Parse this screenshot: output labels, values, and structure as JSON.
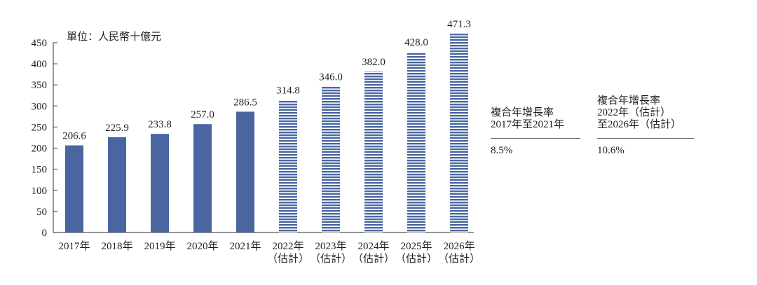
{
  "chart_data": {
    "type": "bar",
    "title": "",
    "unit_label": "單位：人民幣十億元",
    "xlabel": "",
    "ylabel": "人民幣十億元",
    "ylim": [
      0,
      450
    ],
    "yticks": [
      0,
      50,
      100,
      150,
      200,
      250,
      300,
      350,
      400,
      450
    ],
    "grid": false,
    "categories": [
      "2017年",
      "2018年",
      "2019年",
      "2020年",
      "2021年",
      "2022年（估計）",
      "2023年（估計）",
      "2024年（估計）",
      "2025年（估計）",
      "2026年（估計）"
    ],
    "category_lines": [
      [
        "2017年"
      ],
      [
        "2018年"
      ],
      [
        "2019年"
      ],
      [
        "2020年"
      ],
      [
        "2021年"
      ],
      [
        "2022年",
        "（估計）"
      ],
      [
        "2023年",
        "（估計）"
      ],
      [
        "2024年",
        "（估計）"
      ],
      [
        "2025年",
        "（估計）"
      ],
      [
        "2026年",
        "（估計）"
      ]
    ],
    "values": [
      206.6,
      225.9,
      233.8,
      257.0,
      286.5,
      314.8,
      346.0,
      382.0,
      428.0,
      471.3
    ],
    "value_labels": [
      "206.6",
      "225.9",
      "233.8",
      "257.0",
      "286.5",
      "314.8",
      "346.0",
      "382.0",
      "428.0",
      "471.3"
    ],
    "estimated": [
      false,
      false,
      false,
      false,
      false,
      true,
      true,
      true,
      true,
      true
    ],
    "colors": {
      "actual": "#4a66a1",
      "estimated_stripe": "#4a66a1",
      "estimated_gap": "#ffffff"
    },
    "annotations": [
      {
        "header_lines": [
          "複合年增長率",
          "2017年至2021年"
        ],
        "value": "8.5%"
      },
      {
        "header_lines": [
          "複合年增長率",
          "2022年（估計）",
          "至2026年（估計）"
        ],
        "value": "10.6%"
      }
    ],
    "legend": null
  }
}
